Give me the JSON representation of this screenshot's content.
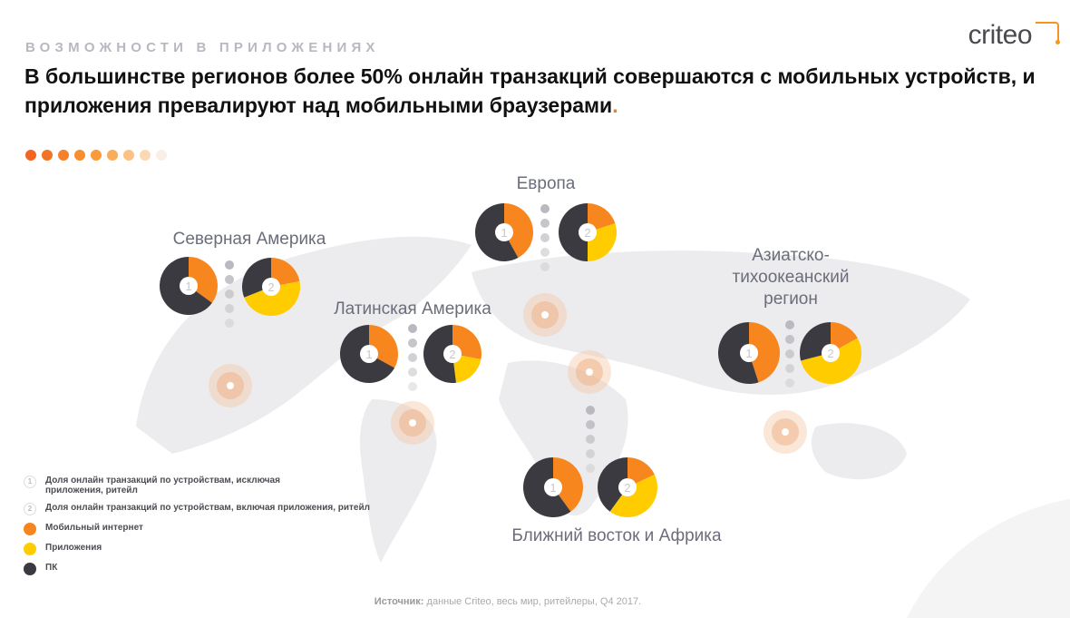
{
  "header": {
    "kicker": "ВОЗМОЖНОСТИ В ПРИЛОЖЕНИЯХ",
    "title": "В большинстве регионов более 50% онлайн транзакций совершаются с мобильных устройств, и приложения превалируют над мобильными браузерами",
    "title_dot": ".",
    "logo": "criteo"
  },
  "colors": {
    "mobile_web": "#f7861f",
    "apps": "#ffcc00",
    "pc": "#3b3a40",
    "accent": "#f47c20"
  },
  "chart_data": {
    "type": "pie",
    "series_names": [
      "Мобильный интернет",
      "Приложения",
      "ПК"
    ],
    "regions": [
      {
        "name": "Северная Америка",
        "pie1": [
          35,
          0,
          65
        ],
        "pie2": [
          22,
          47,
          31
        ]
      },
      {
        "name": "Латинская Америка",
        "pie1": [
          33,
          0,
          67
        ],
        "pie2": [
          28,
          20,
          52
        ]
      },
      {
        "name": "Европа",
        "pie1": [
          42,
          0,
          58
        ],
        "pie2": [
          20,
          30,
          50
        ]
      },
      {
        "name": "Азиатско-тихоокеанский регион",
        "name_lines": [
          "Азиатско-",
          "тихоокеанский",
          "регион"
        ],
        "pie1": [
          45,
          0,
          55
        ],
        "pie2": [
          17,
          54,
          29
        ]
      },
      {
        "name": "Ближний восток и Африка",
        "pie1": [
          40,
          0,
          60
        ],
        "pie2": [
          18,
          42,
          40
        ]
      }
    ],
    "pie_labels": [
      "1",
      "2"
    ]
  },
  "legend": {
    "items": [
      {
        "type": "num",
        "num": "1",
        "label": "Доля онлайн транзакций по устройствам, исключая приложения, ритейл"
      },
      {
        "type": "num",
        "num": "2",
        "label": "Доля онлайн транзакций по устройствам, включая приложения, ритейл"
      },
      {
        "type": "color",
        "label": "Мобильный интернет"
      },
      {
        "type": "color",
        "label": "Приложения"
      },
      {
        "type": "color",
        "label": "ПК"
      }
    ]
  },
  "source": {
    "label": "Источник:",
    "text": " данные Criteo, весь мир, ритейлеры, Q4 2017."
  }
}
